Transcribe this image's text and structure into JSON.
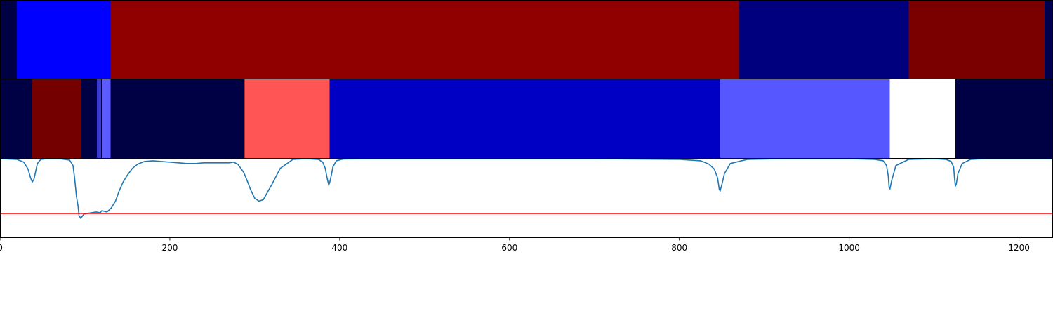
{
  "chart_data": [
    {
      "type": "heatmap",
      "panel": "top-segmentation-bar",
      "xlim": [
        0,
        1240
      ],
      "segments": [
        {
          "start": 0,
          "end": 20,
          "color": "#000044"
        },
        {
          "start": 20,
          "end": 130,
          "color": "#0000ff"
        },
        {
          "start": 130,
          "end": 870,
          "color": "#910000"
        },
        {
          "start": 870,
          "end": 1070,
          "color": "#00007e"
        },
        {
          "start": 1070,
          "end": 1230,
          "color": "#7a0000"
        },
        {
          "start": 1230,
          "end": 1240,
          "color": "#00004e"
        }
      ]
    },
    {
      "type": "heatmap",
      "panel": "middle-segmentation-bar",
      "xlim": [
        0,
        1240
      ],
      "segments": [
        {
          "start": 0,
          "end": 37,
          "color": "#000044"
        },
        {
          "start": 37,
          "end": 95,
          "color": "#740000"
        },
        {
          "start": 95,
          "end": 114,
          "color": "#000044"
        },
        {
          "start": 114,
          "end": 119,
          "color": "#3a3ad6"
        },
        {
          "start": 119,
          "end": 120,
          "color": "#000044"
        },
        {
          "start": 120,
          "end": 130,
          "color": "#5b5bff"
        },
        {
          "start": 130,
          "end": 287,
          "color": "#000044"
        },
        {
          "start": 287,
          "end": 288,
          "color": "#740000"
        },
        {
          "start": 288,
          "end": 388,
          "color": "#ff5555"
        },
        {
          "start": 388,
          "end": 848,
          "color": "#0000c4"
        },
        {
          "start": 848,
          "end": 1048,
          "color": "#5757ff"
        },
        {
          "start": 1048,
          "end": 1125,
          "color": "#ffffff"
        },
        {
          "start": 1125,
          "end": 1240,
          "color": "#000044"
        }
      ]
    },
    {
      "type": "line",
      "panel": "bottom-signal",
      "xlim": [
        0,
        1240
      ],
      "ylim": [
        -0.15,
        1.0
      ],
      "x_ticks": [
        0,
        200,
        400,
        600,
        800,
        1000,
        1200
      ],
      "x_tick_labels": [
        "0",
        "200",
        "400",
        "600",
        "800",
        "1000",
        "1200"
      ],
      "threshold": {
        "value": 0.2,
        "color": "#ff0000"
      },
      "series": [
        {
          "color": "#1f77b4",
          "x": [
            0,
            20,
            28,
            33,
            36,
            38,
            40,
            44,
            48,
            55,
            70,
            82,
            86,
            88,
            90,
            92,
            93,
            95,
            97,
            99,
            103,
            108,
            113,
            118,
            120,
            126,
            131,
            136,
            140,
            145,
            150,
            156,
            162,
            170,
            180,
            190,
            200,
            210,
            220,
            230,
            240,
            250,
            260,
            270,
            275,
            280,
            283,
            287,
            291,
            295,
            300,
            305,
            310,
            320,
            330,
            345,
            360,
            375,
            380,
            383,
            385,
            387,
            388,
            390,
            392,
            396,
            404,
            430,
            480,
            600,
            700,
            800,
            825,
            835,
            841,
            845,
            847,
            848,
            850,
            853,
            860,
            880,
            920,
            1000,
            1030,
            1040,
            1044,
            1046,
            1047,
            1048,
            1050,
            1055,
            1070,
            1100,
            1114,
            1120,
            1123,
            1124,
            1125,
            1126,
            1128,
            1133,
            1143,
            1160,
            1200,
            1240
          ],
          "y": [
            1.0,
            0.99,
            0.95,
            0.85,
            0.72,
            0.66,
            0.7,
            0.93,
            0.99,
            1.0,
            1.0,
            0.98,
            0.9,
            0.7,
            0.45,
            0.3,
            0.17,
            0.13,
            0.16,
            0.19,
            0.2,
            0.21,
            0.22,
            0.21,
            0.24,
            0.22,
            0.28,
            0.38,
            0.52,
            0.66,
            0.76,
            0.86,
            0.92,
            0.96,
            0.97,
            0.96,
            0.95,
            0.94,
            0.93,
            0.93,
            0.94,
            0.94,
            0.94,
            0.94,
            0.95,
            0.92,
            0.87,
            0.8,
            0.68,
            0.55,
            0.42,
            0.38,
            0.4,
            0.62,
            0.86,
            0.99,
            1.0,
            0.99,
            0.95,
            0.86,
            0.73,
            0.62,
            0.64,
            0.75,
            0.88,
            0.97,
            0.995,
            1.0,
            1.0,
            1.0,
            1.0,
            0.99,
            0.97,
            0.92,
            0.85,
            0.72,
            0.55,
            0.53,
            0.62,
            0.78,
            0.93,
            0.99,
            1.0,
            1.0,
            0.99,
            0.97,
            0.9,
            0.75,
            0.58,
            0.56,
            0.68,
            0.9,
            0.99,
            1.0,
            0.99,
            0.96,
            0.88,
            0.72,
            0.6,
            0.62,
            0.78,
            0.93,
            0.99,
            1.0,
            1.0,
            1.0
          ]
        }
      ]
    }
  ]
}
